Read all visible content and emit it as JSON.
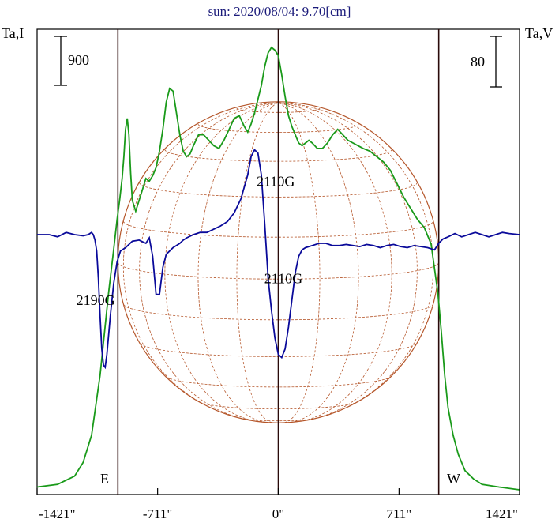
{
  "title": "sun: 2020/08/04: 9.70[cm]",
  "left_axis_label": "Ta,I",
  "right_axis_label": "Ta,V",
  "scale_bars": {
    "left": "900",
    "right": "80"
  },
  "limb_labels": {
    "east": "E",
    "west": "W"
  },
  "colors": {
    "intensity": "#1a9a1a",
    "polarization": "#0a0a9a",
    "grid": "#b5562a",
    "title": "#1a1a7a",
    "limb_lines": "#2a0a0a"
  },
  "annotations": [
    {
      "text": "2110G",
      "x": -15,
      "y": 0.555
    },
    {
      "text": "2110G",
      "x": 30,
      "y": 1.445
    },
    {
      "text": "2190G",
      "x": -1076,
      "y": 1.645
    }
  ],
  "chart_data": {
    "type": "line",
    "title": "sun: 2020/08/04: 9.70[cm]",
    "xlabel": "",
    "xlim": [
      -1421,
      1421
    ],
    "x_ticks": [
      -1421,
      -711,
      0,
      711,
      1421
    ],
    "x_tick_labels": [
      "-1421\"",
      "-711\"",
      "0\"",
      "711\"",
      "1421\""
    ],
    "limbs": {
      "east": -945,
      "west": 945
    },
    "solar_disk": {
      "center_x": 0,
      "radius": 945,
      "grid": true
    },
    "series": [
      {
        "key": "intensity",
        "x": [
          -1421,
          -1300,
          -1200,
          -1150,
          -1100,
          -1050,
          -1000,
          -970,
          -950,
          -935,
          -920,
          -910,
          -900,
          -890,
          -880,
          -870,
          -860,
          -840,
          -820,
          -800,
          -780,
          -760,
          -740,
          -720,
          -700,
          -680,
          -660,
          -640,
          -620,
          -600,
          -580,
          -560,
          -540,
          -520,
          -500,
          -470,
          -440,
          -410,
          -380,
          -350,
          -320,
          -290,
          -260,
          -230,
          -200,
          -180,
          -160,
          -140,
          -120,
          -100,
          -80,
          -60,
          -40,
          -20,
          0,
          20,
          40,
          60,
          80,
          100,
          120,
          140,
          160,
          180,
          200,
          230,
          260,
          290,
          320,
          350,
          380,
          410,
          440,
          470,
          500,
          540,
          580,
          620,
          660,
          700,
          740,
          780,
          820,
          860,
          900,
          940,
          960,
          980,
          1000,
          1030,
          1060,
          1100,
          1150,
          1200,
          1300,
          1421
        ],
        "y": [
          0.01,
          0.02,
          0.05,
          0.1,
          0.2,
          0.42,
          0.72,
          0.88,
          0.99,
          1.06,
          1.14,
          1.22,
          1.32,
          1.36,
          1.3,
          1.16,
          1.06,
          1.02,
          1.06,
          1.1,
          1.14,
          1.13,
          1.15,
          1.18,
          1.24,
          1.32,
          1.42,
          1.47,
          1.46,
          1.38,
          1.3,
          1.24,
          1.22,
          1.23,
          1.26,
          1.3,
          1.3,
          1.28,
          1.26,
          1.25,
          1.28,
          1.32,
          1.36,
          1.37,
          1.33,
          1.31,
          1.34,
          1.38,
          1.43,
          1.48,
          1.55,
          1.6,
          1.62,
          1.61,
          1.59,
          1.52,
          1.44,
          1.37,
          1.33,
          1.3,
          1.27,
          1.26,
          1.27,
          1.28,
          1.27,
          1.25,
          1.25,
          1.27,
          1.3,
          1.32,
          1.3,
          1.28,
          1.27,
          1.26,
          1.25,
          1.24,
          1.22,
          1.2,
          1.17,
          1.12,
          1.07,
          1.03,
          0.99,
          0.96,
          0.9,
          0.72,
          0.58,
          0.42,
          0.3,
          0.2,
          0.13,
          0.07,
          0.04,
          0.02,
          0.01,
          0.0
        ]
      },
      {
        "key": "polarization",
        "x": [
          -1421,
          -1350,
          -1300,
          -1250,
          -1200,
          -1150,
          -1120,
          -1100,
          -1090,
          -1080,
          -1070,
          -1060,
          -1050,
          -1040,
          -1030,
          -1020,
          -1010,
          -990,
          -970,
          -950,
          -930,
          -900,
          -860,
          -820,
          -780,
          -760,
          -740,
          -720,
          -700,
          -680,
          -660,
          -640,
          -620,
          -600,
          -580,
          -560,
          -540,
          -500,
          -460,
          -420,
          -380,
          -340,
          -300,
          -260,
          -220,
          -180,
          -160,
          -140,
          -120,
          -100,
          -80,
          -60,
          -40,
          -20,
          0,
          20,
          40,
          60,
          80,
          100,
          120,
          140,
          160,
          180,
          200,
          240,
          280,
          320,
          360,
          400,
          440,
          480,
          520,
          560,
          600,
          640,
          680,
          720,
          760,
          800,
          840,
          880,
          920,
          945,
          970,
          1000,
          1040,
          1080,
          1120,
          1160,
          1200,
          1240,
          1280,
          1320,
          1360,
          1421
        ],
        "y": [
          0.0,
          0.0,
          -0.02,
          0.02,
          0.0,
          -0.01,
          0.0,
          0.02,
          0.0,
          -0.05,
          -0.15,
          -0.4,
          -0.75,
          -1.05,
          -1.2,
          -1.22,
          -1.1,
          -0.75,
          -0.45,
          -0.25,
          -0.15,
          -0.12,
          -0.06,
          -0.05,
          -0.08,
          -0.03,
          -0.2,
          -0.55,
          -0.55,
          -0.3,
          -0.18,
          -0.15,
          -0.12,
          -0.1,
          -0.08,
          -0.05,
          -0.03,
          0.0,
          0.02,
          0.02,
          0.05,
          0.08,
          0.12,
          0.2,
          0.33,
          0.55,
          0.72,
          0.78,
          0.75,
          0.55,
          0.1,
          -0.4,
          -0.7,
          -0.95,
          -1.1,
          -1.13,
          -1.05,
          -0.85,
          -0.6,
          -0.35,
          -0.2,
          -0.14,
          -0.12,
          -0.11,
          -0.1,
          -0.08,
          -0.08,
          -0.1,
          -0.1,
          -0.09,
          -0.1,
          -0.11,
          -0.09,
          -0.1,
          -0.12,
          -0.1,
          -0.09,
          -0.11,
          -0.12,
          -0.1,
          -0.11,
          -0.12,
          -0.14,
          -0.08,
          -0.04,
          -0.02,
          0.01,
          -0.02,
          0.0,
          0.02,
          0.0,
          -0.02,
          0.0,
          0.02,
          0.01,
          0.0
        ]
      }
    ]
  }
}
